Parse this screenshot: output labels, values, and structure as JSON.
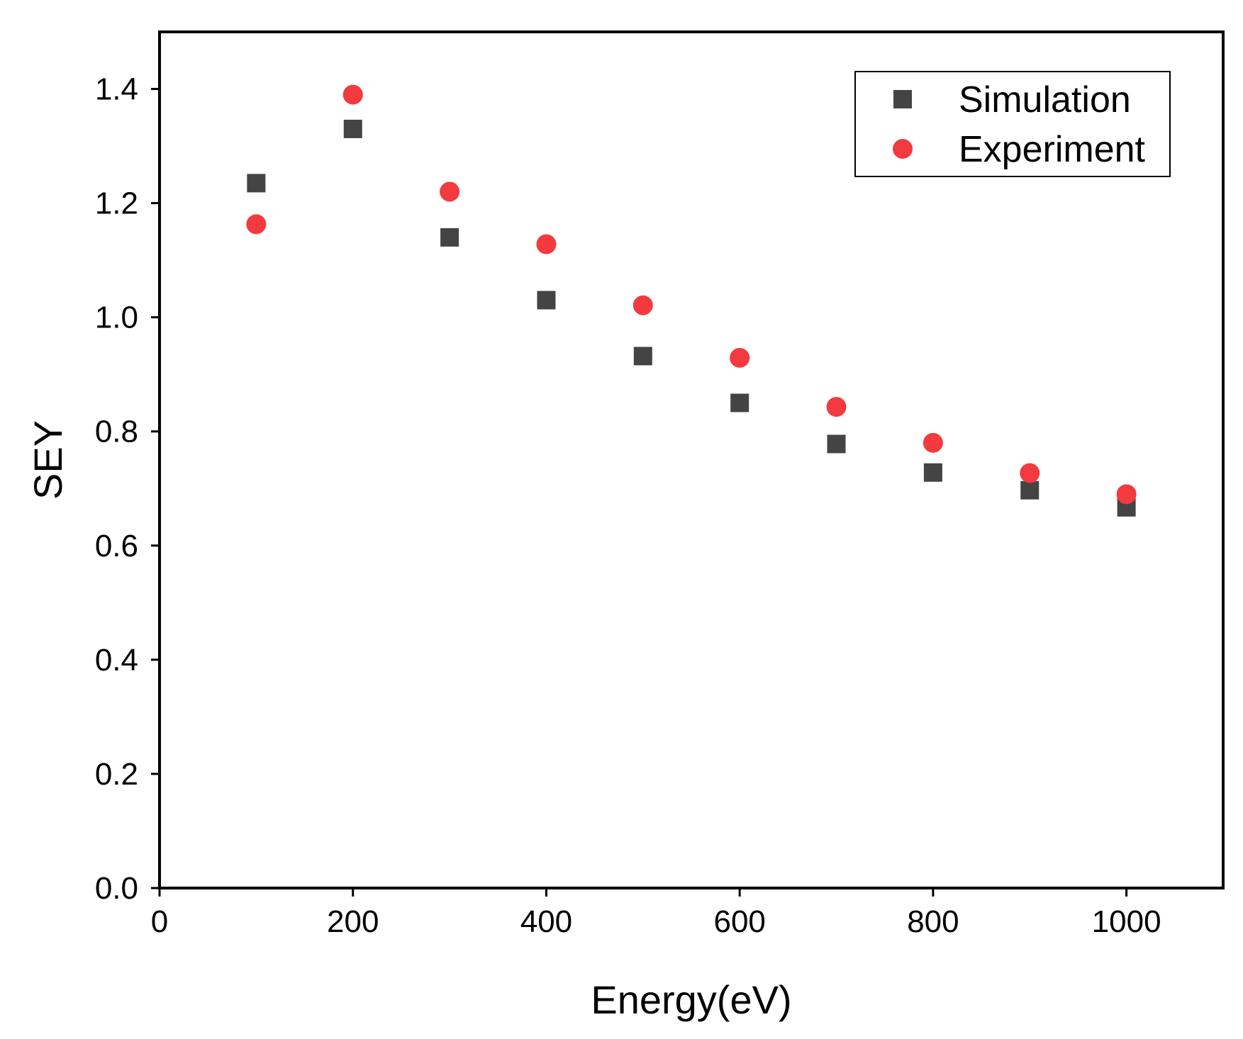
{
  "chart_data": {
    "type": "scatter",
    "title": "",
    "xlabel": "Energy(eV)",
    "ylabel": "SEY",
    "xlim": [
      0,
      1100
    ],
    "ylim": [
      0.0,
      1.5
    ],
    "x_ticks": [
      "0",
      "200",
      "400",
      "600",
      "800",
      "1000"
    ],
    "x_tick_values": [
      0,
      200,
      400,
      600,
      800,
      1000
    ],
    "y_ticks": [
      "0.0",
      "0.2",
      "0.4",
      "0.6",
      "0.8",
      "1.0",
      "1.2",
      "1.4"
    ],
    "y_tick_values": [
      0.0,
      0.2,
      0.4,
      0.6,
      0.8,
      1.0,
      1.2,
      1.4
    ],
    "legend_position": "top-right",
    "grid": false,
    "series": [
      {
        "name": "Simulation",
        "marker": "square",
        "color": "#444444",
        "x": [
          100,
          200,
          300,
          400,
          500,
          600,
          700,
          800,
          900,
          1000
        ],
        "values": [
          1.235,
          1.33,
          1.14,
          1.03,
          0.932,
          0.85,
          0.778,
          0.728,
          0.697,
          0.667
        ]
      },
      {
        "name": "Experiment",
        "marker": "circle",
        "color": "#f23a3f",
        "x": [
          100,
          200,
          300,
          400,
          500,
          600,
          700,
          800,
          900,
          1000
        ],
        "values": [
          1.163,
          1.39,
          1.22,
          1.128,
          1.021,
          0.929,
          0.843,
          0.78,
          0.727,
          0.69
        ]
      }
    ]
  }
}
